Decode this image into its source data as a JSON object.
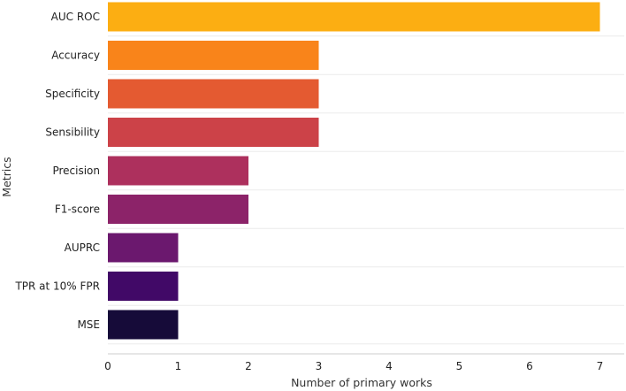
{
  "chart_data": {
    "type": "bar",
    "orientation": "horizontal",
    "categories": [
      "AUC ROC",
      "Accuracy",
      "Specificity",
      "Sensibility",
      "Precision",
      "F1-score",
      "AUPRC",
      "TPR at 10% FPR",
      "MSE"
    ],
    "values": [
      7,
      3,
      3,
      3,
      2,
      2,
      1,
      1,
      1
    ],
    "colors": [
      "#fcae12",
      "#f9841a",
      "#e45a31",
      "#cc4248",
      "#ad305d",
      "#8c2369",
      "#6b186e",
      "#410967",
      "#160b39"
    ],
    "xlabel": "Number of primary works",
    "ylabel": "Metrics",
    "xlim": [
      0,
      7.35
    ],
    "xticks": [
      0,
      1,
      2,
      3,
      4,
      5,
      6,
      7
    ],
    "grid": "horizontal",
    "legend": "none"
  }
}
